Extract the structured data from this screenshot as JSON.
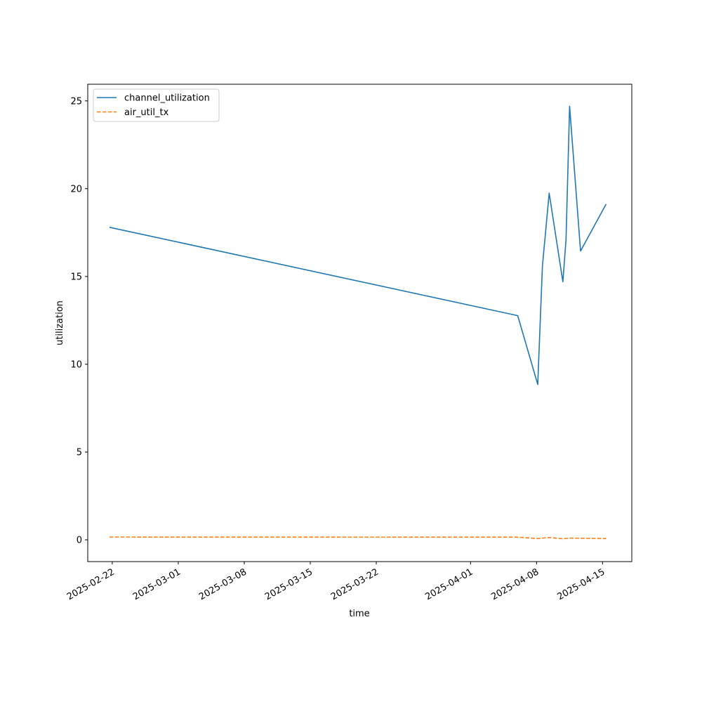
{
  "chart_data": {
    "type": "line",
    "title": "",
    "xlabel": "time",
    "ylabel": "utilization",
    "x_type": "date",
    "xlim": [
      "2025-02-19T09:36",
      "2025-04-18T02:24"
    ],
    "ylim": [
      -1.24,
      25.95
    ],
    "x_ticks": [
      "2025-02-22",
      "2025-03-01",
      "2025-03-08",
      "2025-03-15",
      "2025-03-22",
      "2025-04-01",
      "2025-04-08",
      "2025-04-15"
    ],
    "y_ticks": [
      0,
      5,
      10,
      15,
      20,
      25
    ],
    "y_tick_labels": [
      "0",
      "5",
      "10",
      "15",
      "20",
      "25"
    ],
    "grid": false,
    "legend": {
      "position": "top-left"
    },
    "series": [
      {
        "name": "channel_utilization",
        "color": "#1f77b4",
        "style": "solid",
        "points": [
          {
            "x": "2025-02-21T17:00",
            "y": 17.8
          },
          {
            "x": "2025-04-06T00:00",
            "y": 12.77
          },
          {
            "x": "2025-04-08T03:00",
            "y": 8.85
          },
          {
            "x": "2025-04-08T15:00",
            "y": 15.6
          },
          {
            "x": "2025-04-09T08:00",
            "y": 19.75
          },
          {
            "x": "2025-04-10T19:00",
            "y": 14.7
          },
          {
            "x": "2025-04-11T03:00",
            "y": 17.1
          },
          {
            "x": "2025-04-11T12:00",
            "y": 24.7
          },
          {
            "x": "2025-04-12T16:00",
            "y": 16.45
          },
          {
            "x": "2025-04-15T09:00",
            "y": 19.12
          }
        ]
      },
      {
        "name": "air_util_tx",
        "color": "#ff7f0e",
        "style": "dashed",
        "points": [
          {
            "x": "2025-02-21T17:00",
            "y": 0.16
          },
          {
            "x": "2025-04-06T00:00",
            "y": 0.15
          },
          {
            "x": "2025-04-08T03:00",
            "y": 0.07
          },
          {
            "x": "2025-04-09T08:00",
            "y": 0.13
          },
          {
            "x": "2025-04-10T19:00",
            "y": 0.06
          },
          {
            "x": "2025-04-11T12:00",
            "y": 0.1
          },
          {
            "x": "2025-04-15T09:00",
            "y": 0.07
          }
        ]
      }
    ]
  }
}
